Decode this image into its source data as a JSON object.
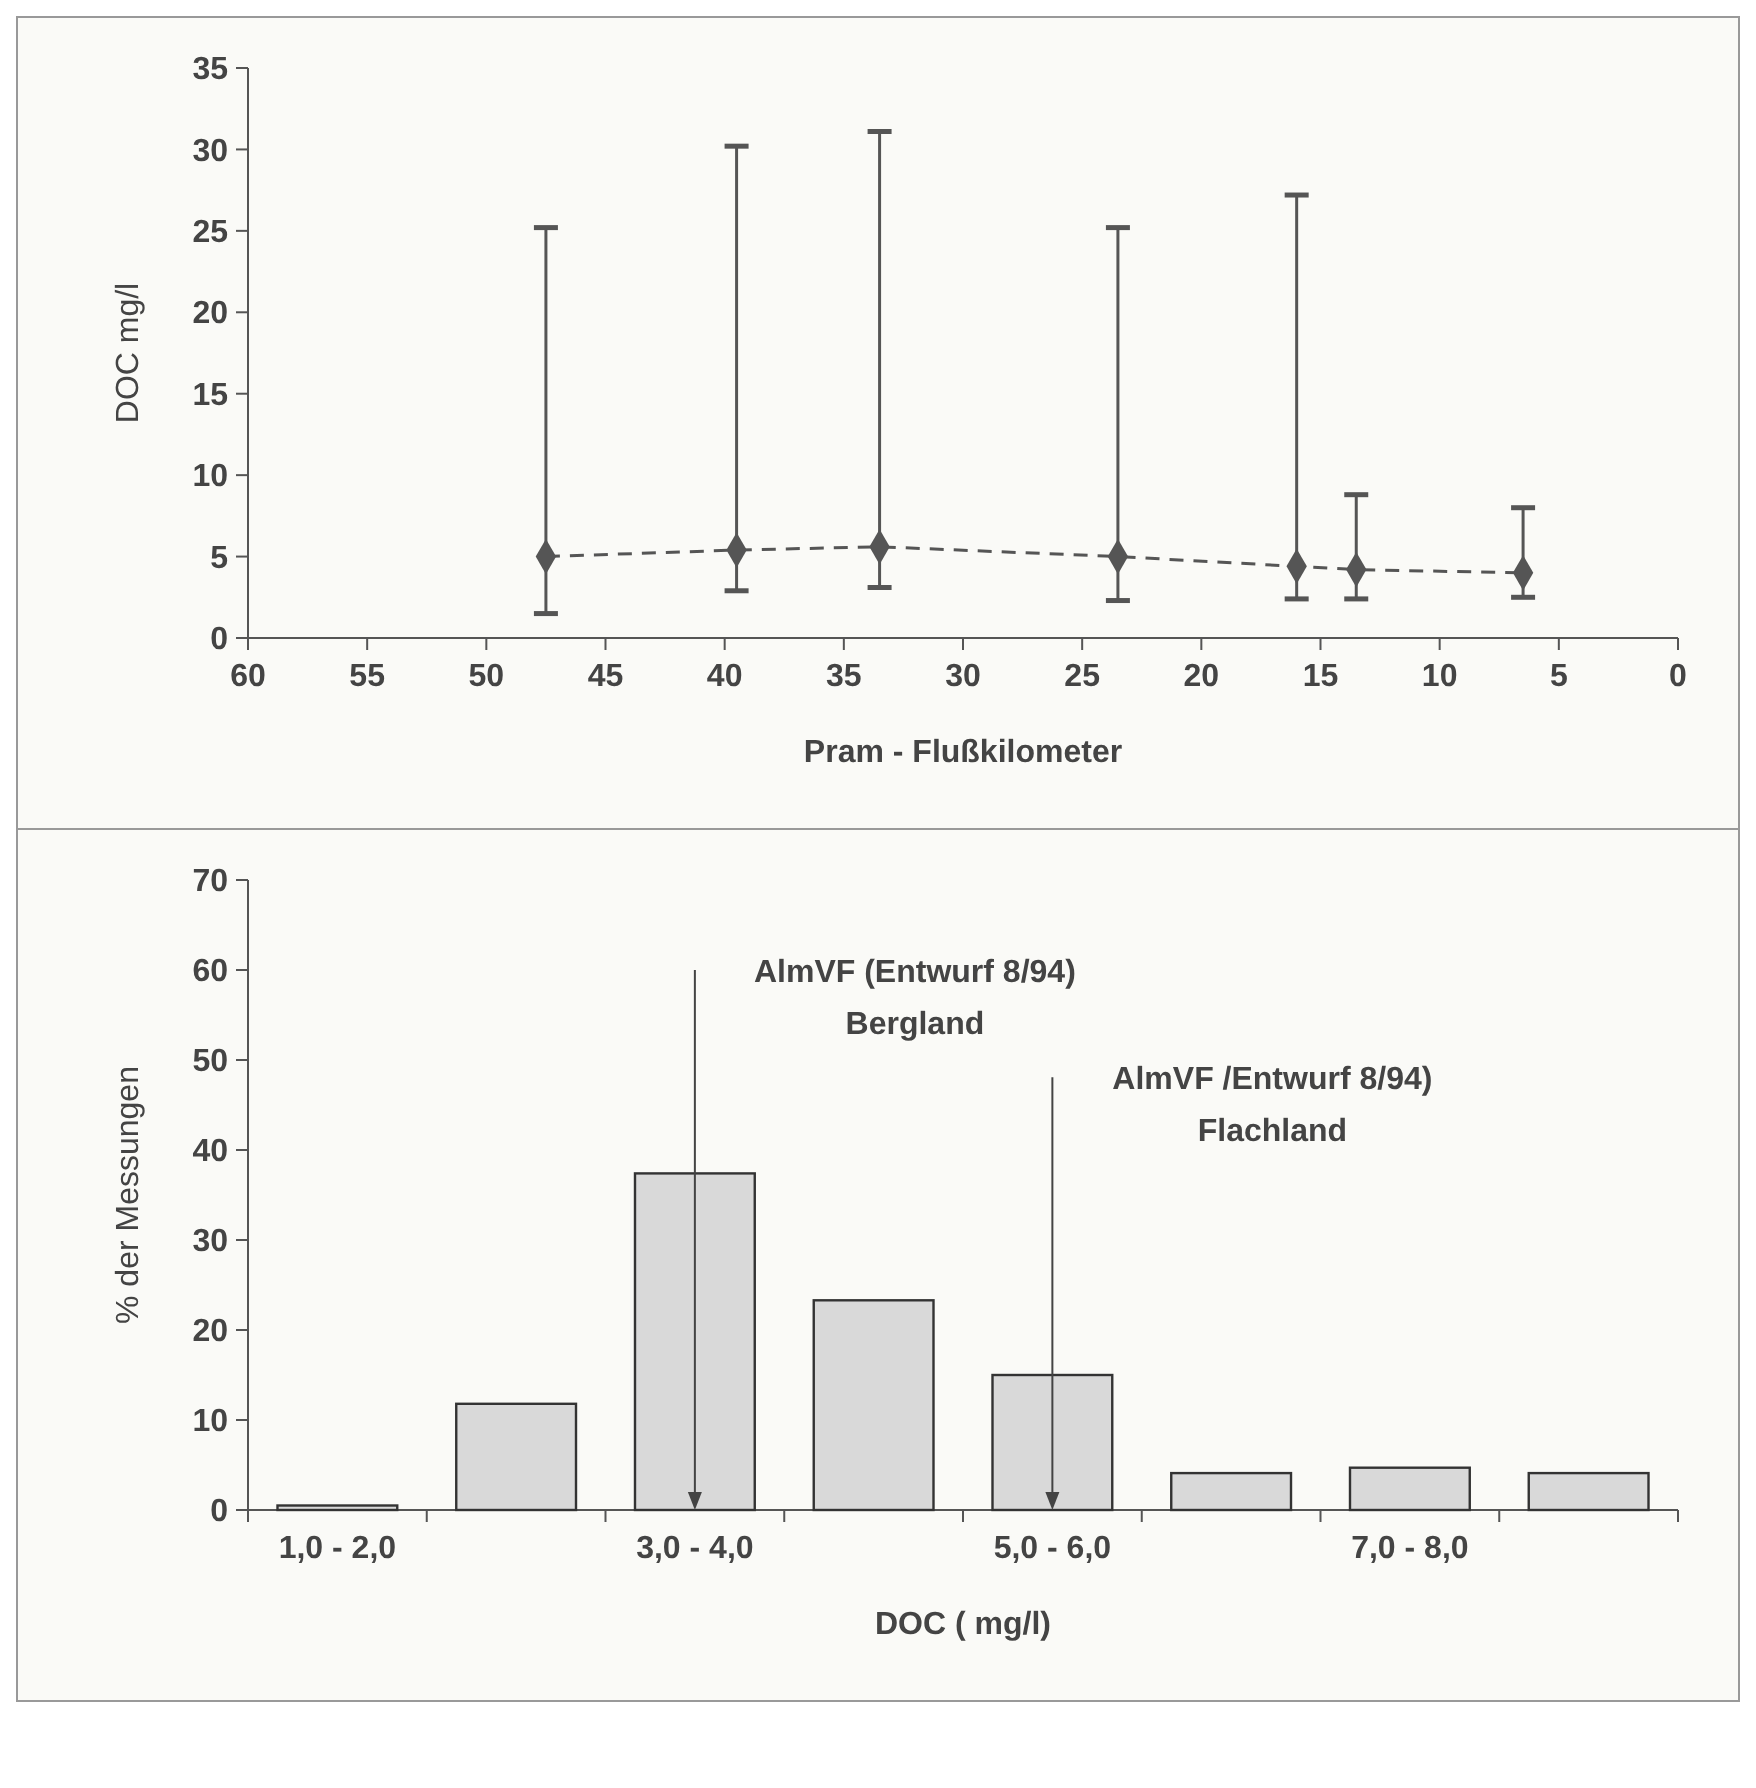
{
  "chart_data": [
    {
      "type": "line",
      "xlabel": "Pram - Flußkilometer",
      "ylabel": "DOC mg/l",
      "xlim": [
        60,
        0
      ],
      "xticks": [
        60,
        55,
        50,
        45,
        40,
        35,
        30,
        25,
        20,
        15,
        10,
        5,
        0
      ],
      "ylim": [
        0,
        35
      ],
      "yticks": [
        0,
        5,
        10,
        15,
        20,
        25,
        30,
        35
      ],
      "marker": "diamond",
      "line_style": "dashed",
      "grid": false,
      "series": [
        {
          "color": "#555555",
          "x": [
            47.5,
            39.5,
            33.5,
            23.5,
            16,
            13.5,
            6.5
          ],
          "values": [
            5,
            5.4,
            5.6,
            5,
            4.4,
            4.2,
            4
          ],
          "errors": [
            [
              1.5,
              25.2
            ],
            [
              2.9,
              30.2
            ],
            [
              3.1,
              31.1
            ],
            [
              2.3,
              25.2
            ],
            [
              2.4,
              27.2
            ],
            [
              2.4,
              8.8
            ],
            [
              2.5,
              8
            ]
          ]
        }
      ]
    },
    {
      "type": "bar",
      "xlabel": "DOC  ( mg/l)",
      "ylabel": "% der Messungen",
      "categories": [
        "1,0  -  2,0",
        null,
        "3,0  -  4,0",
        null,
        "5,0  -  6,0",
        null,
        "7,0  -  8,0",
        null
      ],
      "ylim": [
        0,
        70
      ],
      "yticks": [
        0,
        10,
        20,
        30,
        40,
        50,
        60,
        70
      ],
      "grid": false,
      "series": [
        {
          "color": "#d9d9d9",
          "values": [
            0.5,
            11.8,
            37.4,
            23.3,
            15,
            4.1,
            4.7,
            4.1
          ]
        }
      ],
      "ref_lines": [
        {
          "axis": "x",
          "value": "3,0  -  4,0",
          "label": "AlmVF (Entwurf 8/94)\nBergland"
        },
        {
          "axis": "x",
          "value": "5,0  -  6,0",
          "label": "AlmVF /Entwurf 8/94)\nFlachland"
        }
      ]
    }
  ]
}
